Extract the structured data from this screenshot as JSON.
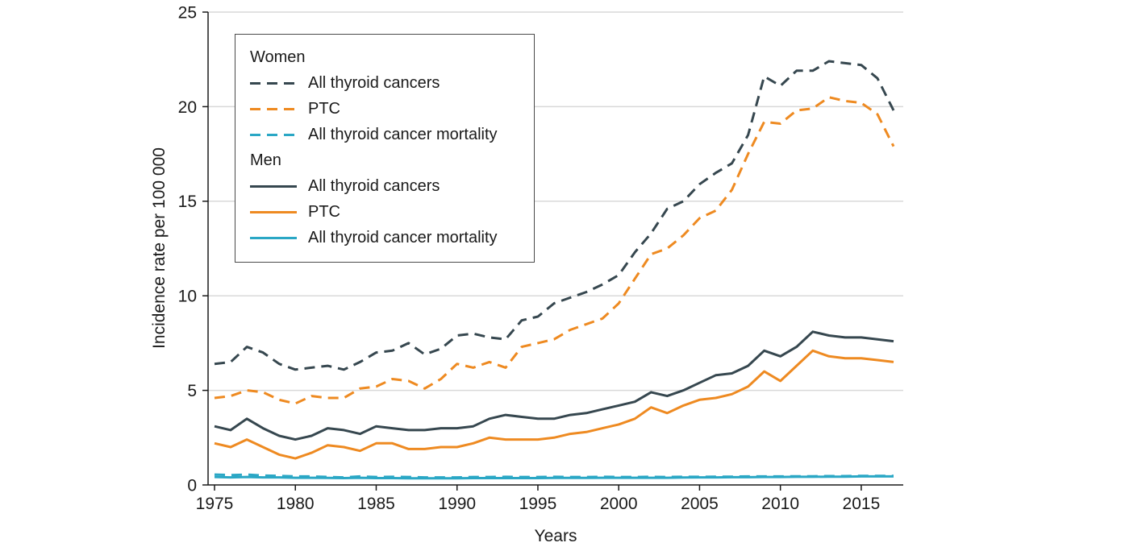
{
  "chart_data": {
    "type": "line",
    "title": "",
    "xlabel": "Years",
    "ylabel": "Incidence rate per 100 000",
    "xlim": [
      1975,
      2017
    ],
    "ylim": [
      0,
      25
    ],
    "xticks": [
      1975,
      1980,
      1985,
      1990,
      1995,
      2000,
      2005,
      2010,
      2015
    ],
    "yticks": [
      0,
      5,
      10,
      15,
      20,
      25
    ],
    "grid": "horizontal",
    "legend_position": "top-left",
    "colors": {
      "dark": "#36474F",
      "orange": "#EE8A21",
      "teal": "#2AA7C5",
      "grid": "#d9d9d9",
      "axis": "#1a1a1a"
    },
    "x": [
      1975,
      1976,
      1977,
      1978,
      1979,
      1980,
      1981,
      1982,
      1983,
      1984,
      1985,
      1986,
      1987,
      1988,
      1989,
      1990,
      1991,
      1992,
      1993,
      1994,
      1995,
      1996,
      1997,
      1998,
      1999,
      2000,
      2001,
      2002,
      2003,
      2004,
      2005,
      2006,
      2007,
      2008,
      2009,
      2010,
      2011,
      2012,
      2013,
      2014,
      2015,
      2016,
      2017
    ],
    "series": [
      {
        "name": "Women — All thyroid cancers",
        "group": "Women",
        "label": "All thyroid cancers",
        "color": "#36474F",
        "dashed": true,
        "values": [
          6.4,
          6.5,
          7.3,
          7.0,
          6.4,
          6.1,
          6.2,
          6.3,
          6.1,
          6.5,
          7.0,
          7.1,
          7.5,
          6.9,
          7.2,
          7.9,
          8.0,
          7.8,
          7.7,
          8.7,
          8.9,
          9.6,
          9.9,
          10.2,
          10.6,
          11.1,
          12.3,
          13.3,
          14.6,
          15.0,
          15.9,
          16.5,
          17.0,
          18.5,
          21.6,
          21.1,
          21.9,
          21.9,
          22.4,
          22.3,
          22.2,
          21.5,
          19.8
        ]
      },
      {
        "name": "Women — PTC",
        "group": "Women",
        "label": "PTC",
        "color": "#EE8A21",
        "dashed": true,
        "values": [
          4.6,
          4.7,
          5.0,
          4.9,
          4.5,
          4.3,
          4.7,
          4.6,
          4.6,
          5.1,
          5.2,
          5.6,
          5.5,
          5.1,
          5.6,
          6.4,
          6.2,
          6.5,
          6.2,
          7.3,
          7.5,
          7.7,
          8.2,
          8.5,
          8.8,
          9.6,
          10.9,
          12.2,
          12.5,
          13.2,
          14.1,
          14.5,
          15.6,
          17.5,
          19.2,
          19.1,
          19.8,
          19.9,
          20.5,
          20.3,
          20.2,
          19.6,
          17.9
        ]
      },
      {
        "name": "Women — All thyroid cancer mortality",
        "group": "Women",
        "label": "All thyroid cancer mortality",
        "color": "#2AA7C5",
        "dashed": true,
        "values": [
          0.55,
          0.52,
          0.55,
          0.5,
          0.48,
          0.45,
          0.45,
          0.42,
          0.4,
          0.45,
          0.42,
          0.43,
          0.42,
          0.4,
          0.4,
          0.4,
          0.42,
          0.42,
          0.43,
          0.42,
          0.42,
          0.43,
          0.42,
          0.42,
          0.43,
          0.42,
          0.42,
          0.43,
          0.42,
          0.43,
          0.43,
          0.44,
          0.44,
          0.45,
          0.45,
          0.45,
          0.46,
          0.46,
          0.47,
          0.47,
          0.48,
          0.48,
          0.48
        ]
      },
      {
        "name": "Men — All thyroid cancers",
        "group": "Men",
        "label": "All thyroid cancers",
        "color": "#36474F",
        "dashed": false,
        "values": [
          3.1,
          2.9,
          3.5,
          3.0,
          2.6,
          2.4,
          2.6,
          3.0,
          2.9,
          2.7,
          3.1,
          3.0,
          2.9,
          2.9,
          3.0,
          3.0,
          3.1,
          3.5,
          3.7,
          3.6,
          3.5,
          3.5,
          3.7,
          3.8,
          4.0,
          4.2,
          4.4,
          4.9,
          4.7,
          5.0,
          5.4,
          5.8,
          5.9,
          6.3,
          7.1,
          6.8,
          7.3,
          8.1,
          7.9,
          7.8,
          7.8,
          7.7,
          7.6
        ]
      },
      {
        "name": "Men — PTC",
        "group": "Men",
        "label": "PTC",
        "color": "#EE8A21",
        "dashed": false,
        "values": [
          2.2,
          2.0,
          2.4,
          2.0,
          1.6,
          1.4,
          1.7,
          2.1,
          2.0,
          1.8,
          2.2,
          2.2,
          1.9,
          1.9,
          2.0,
          2.0,
          2.2,
          2.5,
          2.4,
          2.4,
          2.4,
          2.5,
          2.7,
          2.8,
          3.0,
          3.2,
          3.5,
          4.1,
          3.8,
          4.2,
          4.5,
          4.6,
          4.8,
          5.2,
          6.0,
          5.5,
          6.3,
          7.1,
          6.8,
          6.7,
          6.7,
          6.6,
          6.5
        ]
      },
      {
        "name": "Men — All thyroid cancer mortality",
        "group": "Men",
        "label": "All thyroid cancer mortality",
        "color": "#2AA7C5",
        "dashed": false,
        "values": [
          0.42,
          0.4,
          0.42,
          0.4,
          0.4,
          0.38,
          0.38,
          0.37,
          0.36,
          0.38,
          0.36,
          0.36,
          0.35,
          0.35,
          0.35,
          0.35,
          0.36,
          0.36,
          0.36,
          0.36,
          0.36,
          0.37,
          0.37,
          0.37,
          0.38,
          0.38,
          0.38,
          0.38,
          0.38,
          0.39,
          0.4,
          0.4,
          0.41,
          0.41,
          0.42,
          0.42,
          0.43,
          0.43,
          0.44,
          0.44,
          0.45,
          0.45,
          0.45
        ]
      }
    ],
    "legend": {
      "groups": [
        {
          "title": "Women",
          "items": [
            "All thyroid cancers",
            "PTC",
            "All thyroid cancer mortality"
          ]
        },
        {
          "title": "Men",
          "items": [
            "All thyroid cancers",
            "PTC",
            "All thyroid cancer mortality"
          ]
        }
      ]
    }
  }
}
